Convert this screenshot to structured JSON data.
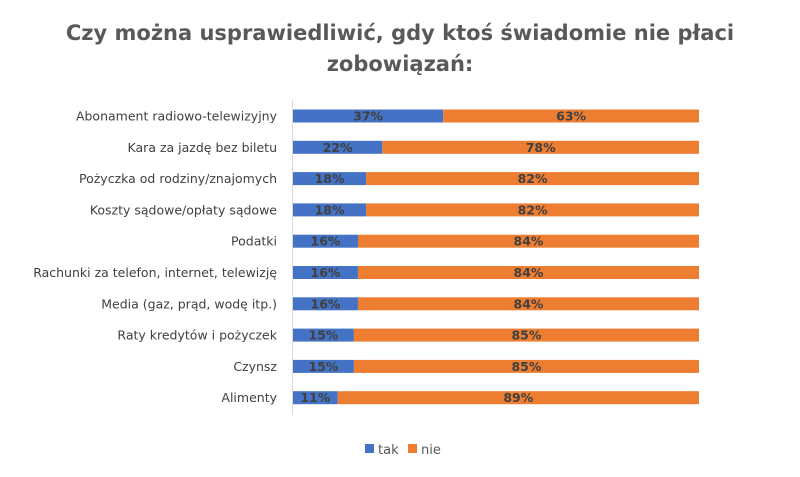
{
  "chart_data": {
    "type": "bar",
    "orientation": "horizontal",
    "stacked": "100%",
    "title": [
      "Czy można usprawiedliwić, gdy ktoś świadomie nie płaci",
      "zobowiązań:"
    ],
    "categories": [
      "Abonament radiowo-telewizyjny",
      "Kara za jazdę bez biletu",
      "Pożyczka od rodziny/znajomych",
      "Koszty sądowe/opłaty sądowe",
      "Podatki",
      "Rachunki za telefon, internet, telewizję",
      "Media (gaz, prąd, wodę itp.)",
      "Raty kredytów i pożyczek",
      "Czynsz",
      "Alimenty"
    ],
    "series": [
      {
        "name": "tak",
        "color": "#4472C4",
        "values": [
          37,
          22,
          18,
          18,
          16,
          16,
          16,
          15,
          15,
          11
        ]
      },
      {
        "name": "nie",
        "color": "#ED7D31",
        "values": [
          63,
          78,
          82,
          82,
          84,
          84,
          84,
          85,
          85,
          89
        ]
      }
    ],
    "data_label_suffix": "%",
    "xlim": [
      0,
      100
    ],
    "grid": false,
    "legend": "bottom"
  }
}
